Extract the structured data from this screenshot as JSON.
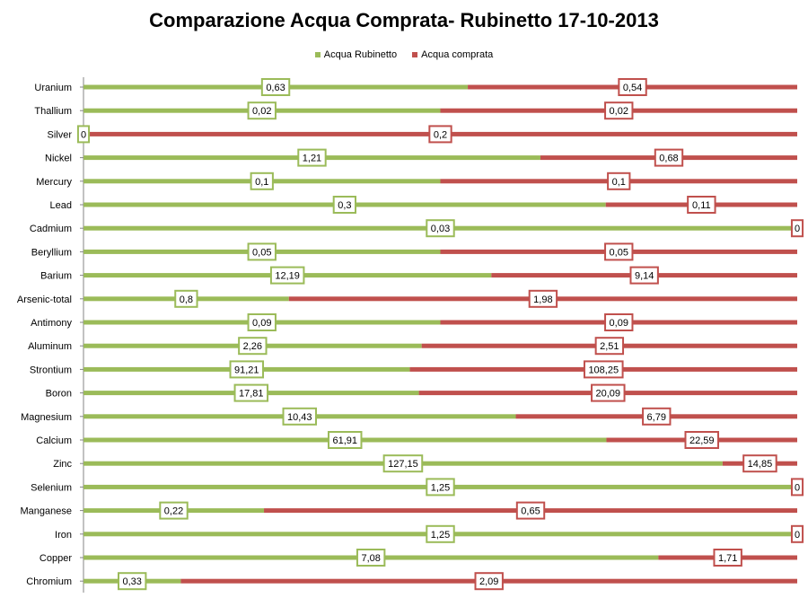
{
  "chart_data": {
    "type": "bar",
    "stacked": "100%",
    "orientation": "horizontal",
    "title": "Comparazione Acqua Comprata- Rubinetto 17-10-2013",
    "legend_position": "top",
    "categories": [
      "Uranium",
      "Thallium",
      "Silver",
      "Nickel",
      "Mercury",
      "Lead",
      "Cadmium",
      "Beryllium",
      "Barium",
      "Arsenic-total",
      "Antimony",
      "Aluminum",
      "Strontium",
      "Boron",
      "Magnesium",
      "Calcium",
      "Zinc",
      "Selenium",
      "Manganese",
      "Iron",
      "Copper",
      "Chromium"
    ],
    "series": [
      {
        "name": "Acqua Rubinetto",
        "color": "#9bbb59",
        "values": [
          0.63,
          0.02,
          0,
          1.21,
          0.1,
          0.3,
          0.03,
          0.05,
          12.19,
          0.8,
          0.09,
          2.26,
          91.21,
          17.81,
          10.43,
          61.91,
          127.15,
          1.25,
          0.22,
          1.25,
          7.08,
          0.33
        ],
        "labels": [
          "0,63",
          "0,02",
          "0",
          "1,21",
          "0,1",
          "0,3",
          "0,03",
          "0,05",
          "12,19",
          "0,8",
          "0,09",
          "2,26",
          "91,21",
          "17,81",
          "10,43",
          "61,91",
          "127,15",
          "1,25",
          "0,22",
          "1,25",
          "7,08",
          "0,33"
        ]
      },
      {
        "name": "Acqua comprata",
        "color": "#c0504d",
        "values": [
          0.54,
          0.02,
          0.2,
          0.68,
          0.1,
          0.11,
          0,
          0.05,
          9.14,
          1.98,
          0.09,
          2.51,
          108.25,
          20.09,
          6.79,
          22.59,
          14.85,
          0,
          0.65,
          0,
          1.71,
          2.09
        ],
        "labels": [
          "0,54",
          "0,02",
          "0,2",
          "0,68",
          "0,1",
          "0,11",
          "0",
          "0,05",
          "9,14",
          "1,98",
          "0,09",
          "2,51",
          "108,25",
          "20,09",
          "6,79",
          "22,59",
          "14,85",
          "0",
          "0,65",
          "0",
          "1,71",
          "2,09"
        ]
      }
    ]
  }
}
